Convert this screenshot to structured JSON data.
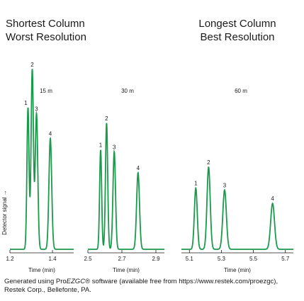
{
  "headings": {
    "left_line1": "Shortest Column",
    "left_line2": "Worst Resolution",
    "right_line1": "Longest Column",
    "right_line2": "Best Resolution"
  },
  "caption": {
    "prefix": "Generated using Pro",
    "italic": "EZGC",
    "suffix": "® software (available free from https://www.restek.com/proezgc), Restek Corp., Bellefonte, PA."
  },
  "ylabel": "Detector signal →",
  "colors": {
    "trace": "#1a9a4a",
    "axis": "#1a1a1a"
  },
  "chart_data": [
    {
      "type": "line",
      "panel_label": "15 m",
      "xlabel": "Time (min)",
      "xlim": [
        1.2,
        1.5
      ],
      "xticks": [
        1.2,
        1.4
      ],
      "xtick_labels": [
        "1.2",
        "1.4"
      ],
      "ylim": [
        0,
        100
      ],
      "peaks": [
        {
          "label": "1",
          "t": 1.285,
          "h": 74,
          "w": 0.005
        },
        {
          "label": "2",
          "t": 1.305,
          "h": 94,
          "w": 0.0055
        },
        {
          "label": "3",
          "t": 1.325,
          "h": 71,
          "w": 0.006
        },
        {
          "label": "4",
          "t": 1.39,
          "h": 58,
          "w": 0.0065
        }
      ]
    },
    {
      "type": "line",
      "panel_label": "30 m",
      "xlabel": "Time (min)",
      "xlim": [
        2.5,
        2.95
      ],
      "xticks": [
        2.5,
        2.7,
        2.9
      ],
      "xtick_labels": [
        "2.5",
        "2.7",
        "2.9"
      ],
      "ylim": [
        0,
        100
      ],
      "peaks": [
        {
          "label": "1",
          "t": 2.575,
          "h": 52,
          "w": 0.006
        },
        {
          "label": "2",
          "t": 2.61,
          "h": 66,
          "w": 0.0065
        },
        {
          "label": "3",
          "t": 2.655,
          "h": 51,
          "w": 0.0075
        },
        {
          "label": "4",
          "t": 2.795,
          "h": 40,
          "w": 0.0085
        }
      ]
    },
    {
      "type": "line",
      "panel_label": "60 m",
      "xlabel": "Time (min)",
      "xlim": [
        5.05,
        5.75
      ],
      "xticks": [
        5.1,
        5.3,
        5.5,
        5.7
      ],
      "xtick_labels": [
        "5.1",
        "5.3",
        "5.5",
        "5.7"
      ],
      "ylim": [
        0,
        100
      ],
      "peaks": [
        {
          "label": "1",
          "t": 5.14,
          "h": 32,
          "w": 0.009
        },
        {
          "label": "2",
          "t": 5.22,
          "h": 43,
          "w": 0.01
        },
        {
          "label": "3",
          "t": 5.32,
          "h": 31,
          "w": 0.011
        },
        {
          "label": "4",
          "t": 5.62,
          "h": 24,
          "w": 0.012
        }
      ]
    }
  ]
}
